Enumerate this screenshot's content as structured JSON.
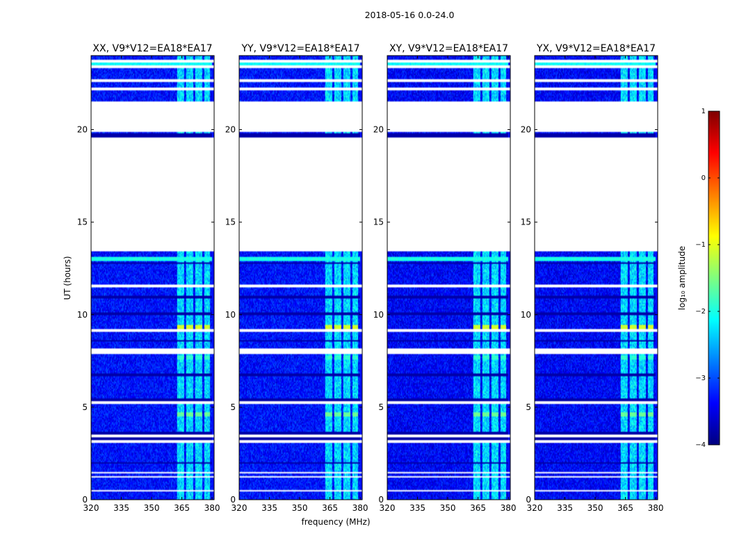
{
  "chart_data": {
    "type": "heatmap",
    "suptitle": "2018-05-16 0.0-24.0",
    "xlabel": "frequency (MHz)",
    "ylabel": "UT (hours)",
    "xlim": [
      320,
      381
    ],
    "ylim": [
      0,
      24
    ],
    "x_ticks": [
      320,
      335,
      350,
      365,
      380
    ],
    "y_ticks": [
      0,
      5,
      10,
      15,
      20
    ],
    "colorbar": {
      "label": "log₁₀ amplitude",
      "range": [
        -4,
        1
      ],
      "ticks": [
        -4,
        -3,
        -2,
        -1,
        0,
        1
      ],
      "tick_labels": [
        "−4",
        "−3",
        "−2",
        "−1",
        "0",
        "1"
      ],
      "colormap": "jet",
      "colors": [
        "#00007f",
        "#0000ff",
        "#007fff",
        "#00ffff",
        "#7fff7f",
        "#ffff00",
        "#ff7f00",
        "#ff0000",
        "#7f0000"
      ]
    },
    "background_level": -3.3,
    "rfi_bands_mhz": [
      [
        362.5,
        366
      ],
      [
        367,
        370.5
      ],
      [
        371.5,
        375
      ],
      [
        376,
        379
      ]
    ],
    "rfi_band_level": -2.3,
    "flagged_ut_ranges": [
      [
        0.45,
        0.5
      ],
      [
        1.2,
        1.3
      ],
      [
        1.4,
        1.5
      ],
      [
        3.1,
        3.2
      ],
      [
        3.4,
        3.5
      ],
      [
        5.2,
        5.3
      ],
      [
        7.9,
        8.2
      ],
      [
        9.1,
        9.2
      ],
      [
        11.5,
        11.65
      ],
      [
        13.4,
        18.05
      ],
      [
        18.1,
        18.2
      ],
      [
        18.25,
        19.6
      ],
      [
        19.85,
        21.5
      ],
      [
        22.1,
        22.25
      ],
      [
        22.55,
        22.7
      ],
      [
        23.35,
        23.45
      ],
      [
        23.65,
        23.75
      ]
    ],
    "dark_rows_ut": [
      2.0,
      3.3,
      3.6,
      5.4,
      6.75,
      8.6,
      10.05,
      10.95,
      12.8,
      18.0,
      19.65,
      19.75
    ],
    "highlight_rows": [
      {
        "ut": 9.35,
        "level": -1.1,
        "bands_only": true
      },
      {
        "ut": 13.0,
        "level": -2.0,
        "bands_only": false
      },
      {
        "ut": 7.7,
        "level": -1.9,
        "bands_only": true
      },
      {
        "ut": 4.6,
        "level": -1.6,
        "bands_only": true
      },
      {
        "ut": 5.4,
        "level": -2.3,
        "bands_only": false,
        "x_max": 350
      },
      {
        "ut": 3.6,
        "level": -2.2,
        "bands_only": false
      },
      {
        "ut": 23.6,
        "level": -2.1,
        "bands_only": false
      }
    ],
    "panels": [
      {
        "title": "XX, V9*V12=EA18*EA17"
      },
      {
        "title": "YY, V9*V12=EA18*EA17"
      },
      {
        "title": "XY, V9*V12=EA18*EA17"
      },
      {
        "title": "YX, V9*V12=EA18*EA17"
      }
    ]
  }
}
